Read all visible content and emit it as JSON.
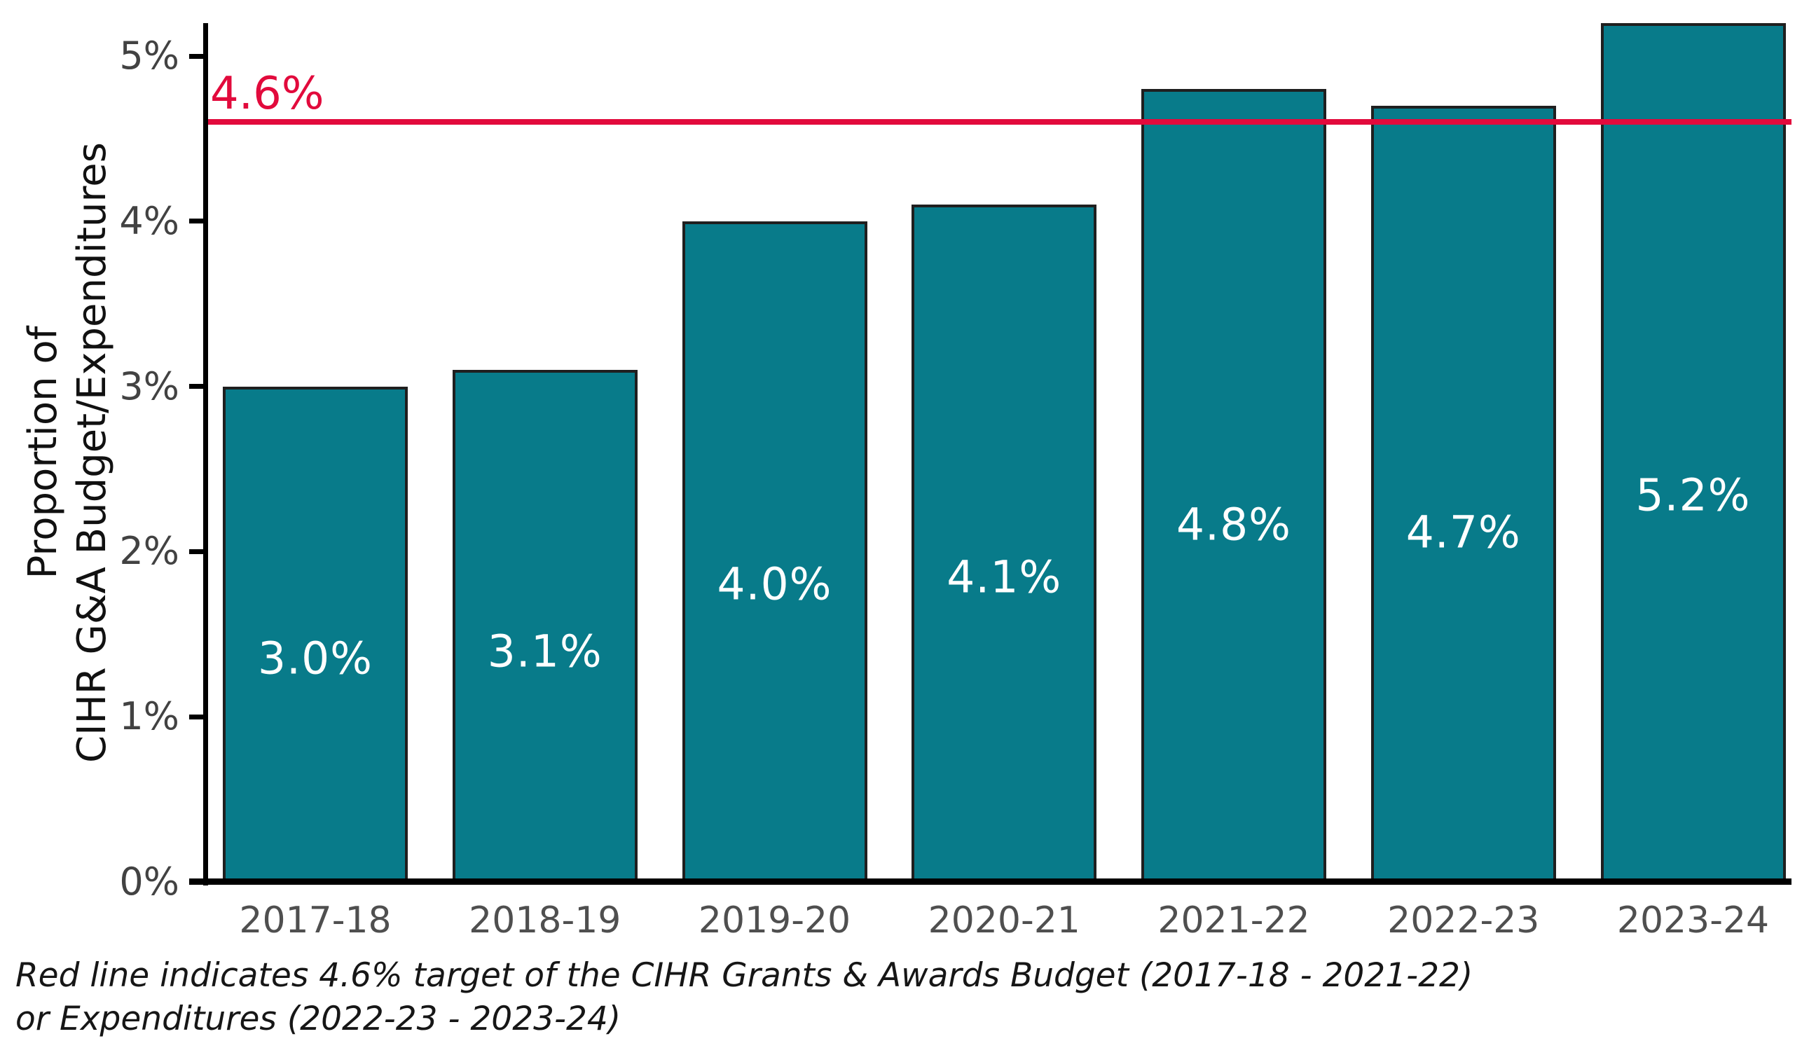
{
  "chart_data": {
    "type": "bar",
    "title": "",
    "xlabel": "",
    "ylabel": "Proportion of CIHR G&A Budget/Expenditures",
    "ylabel_lines": [
      "Proportion of",
      "CIHR G&A Budget/Expenditures"
    ],
    "categories": [
      "2017-18",
      "2018-19",
      "2019-20",
      "2020-21",
      "2021-22",
      "2022-23",
      "2023-24"
    ],
    "values": [
      3.0,
      3.1,
      4.0,
      4.1,
      4.8,
      4.7,
      5.2
    ],
    "bar_labels": [
      "3.0%",
      "3.1%",
      "4.0%",
      "4.1%",
      "4.8%",
      "4.7%",
      "5.2%"
    ],
    "ylim": [
      0,
      5.25
    ],
    "ytick_values": [
      0,
      1,
      2,
      3,
      4,
      5
    ],
    "ytick_labels": [
      "0%",
      "1%",
      "2%",
      "3%",
      "4%",
      "5%"
    ],
    "grid": false,
    "legend": null,
    "target_line": {
      "value": 4.6,
      "label": "4.6%"
    },
    "caption_lines": [
      "Red line indicates 4.6% target of the CIHR Grants & Awards Budget (2017-18 - 2021-22)",
      "or Expenditures (2022-23 - 2023-24)"
    ],
    "colors": {
      "bar": "#087b8a",
      "bar_border": "#1f1f1f",
      "bar_label_text": "#ffffff",
      "target": "#e20a3c",
      "axis": "#000000",
      "ytick_text": "#424242",
      "xtick_text": "#4f4f4f",
      "caption_text": "#161616",
      "ytitle_text": "#111111"
    }
  }
}
